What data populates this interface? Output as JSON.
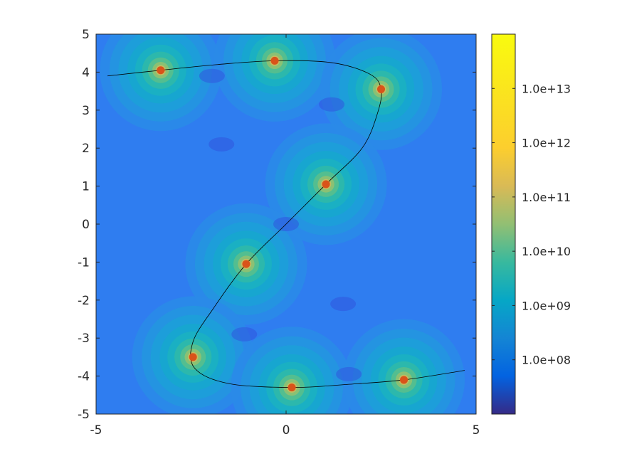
{
  "chart_data": {
    "type": "heatmap",
    "title": "",
    "xlabel": "",
    "ylabel": "",
    "xlim": [
      -5,
      5
    ],
    "ylim": [
      -5,
      5
    ],
    "x_ticks": [
      "-5",
      "0",
      "5"
    ],
    "y_ticks": [
      "5",
      "4",
      "3",
      "2",
      "1",
      "0",
      "-1",
      "-2",
      "-3",
      "-4",
      "-5"
    ],
    "colormap": "parula",
    "color_scale": "log",
    "clim": [
      10000000.0,
      100000000000000.0
    ],
    "colorbar_ticks": [
      "1.0e+13",
      "1.0e+12",
      "1.0e+11",
      "1.0e+10",
      "1.0e+09",
      "1.0e+08"
    ],
    "points": {
      "color": "#D95319",
      "x": [
        -3.3,
        -0.3,
        2.5,
        1.05,
        -1.05,
        -2.45,
        0.15,
        3.1
      ],
      "y": [
        4.05,
        4.3,
        3.55,
        1.05,
        -1.05,
        -3.5,
        -4.3,
        -4.1
      ]
    },
    "curve": {
      "color": "#000000",
      "x": [
        -4.7,
        -3.3,
        -1.8,
        -0.3,
        1.2,
        2.2,
        2.5,
        2.4,
        2.0,
        1.05,
        0.0,
        -1.05,
        -1.9,
        -2.45,
        -2.4,
        -1.5,
        0.15,
        1.6,
        3.1,
        4.7
      ],
      "y": [
        3.9,
        4.05,
        4.2,
        4.3,
        4.25,
        3.95,
        3.55,
        2.9,
        2.0,
        1.05,
        0.0,
        -1.05,
        -2.2,
        -3.1,
        -3.8,
        -4.2,
        -4.3,
        -4.22,
        -4.1,
        -3.85
      ]
    },
    "grid": false,
    "legend": "none"
  }
}
